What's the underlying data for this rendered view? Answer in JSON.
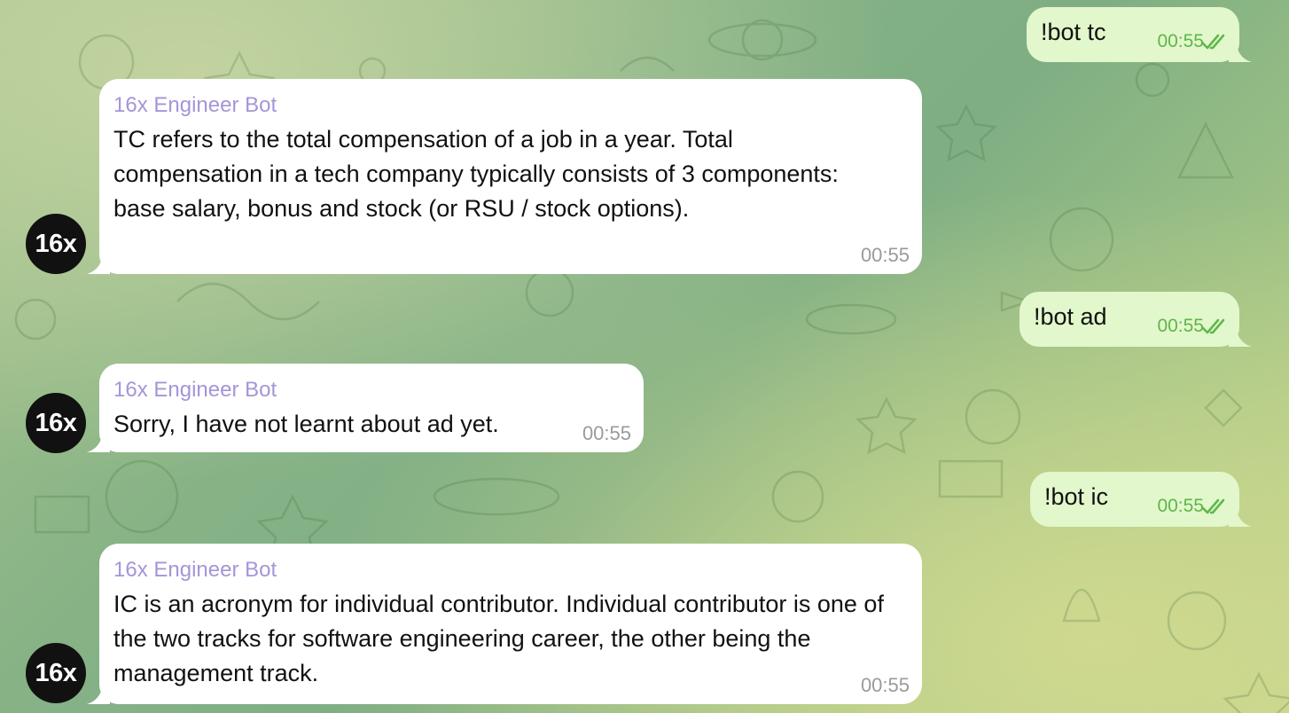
{
  "chat": {
    "messages": [
      {
        "direction": "outgoing",
        "text": "!bot tc",
        "time": "00:55",
        "status": "read"
      },
      {
        "direction": "incoming",
        "sender": "16x Engineer Bot",
        "avatar_text": "16x",
        "text": "TC refers to the total compensation of a job in a year. Total compensation in a tech company typically consists of 3 components: base salary, bonus and stock (or RSU / stock options).",
        "time": "00:55"
      },
      {
        "direction": "outgoing",
        "text": "!bot ad",
        "time": "00:55",
        "status": "read"
      },
      {
        "direction": "incoming",
        "sender": "16x Engineer Bot",
        "avatar_text": "16x",
        "text": "Sorry, I have not learnt about ad yet.",
        "time": "00:55"
      },
      {
        "direction": "outgoing",
        "text": "!bot ic",
        "time": "00:55",
        "status": "read"
      },
      {
        "direction": "incoming",
        "sender": "16x Engineer Bot",
        "avatar_text": "16x",
        "text": "IC is an acronym for individual contributor. Individual contributor is one of the two tracks for software engineering career, the other being the management track.",
        "time": "00:55"
      }
    ]
  },
  "colors": {
    "incoming_bubble": "#ffffff",
    "outgoing_bubble": "#e2f7cb",
    "sender_name": "#a595d8",
    "outgoing_time": "#5fb64b",
    "incoming_time": "#9a9a9a",
    "avatar_bg": "#111111"
  },
  "icons": {
    "read_status": "double-check-icon",
    "background": "doodle-pattern"
  }
}
